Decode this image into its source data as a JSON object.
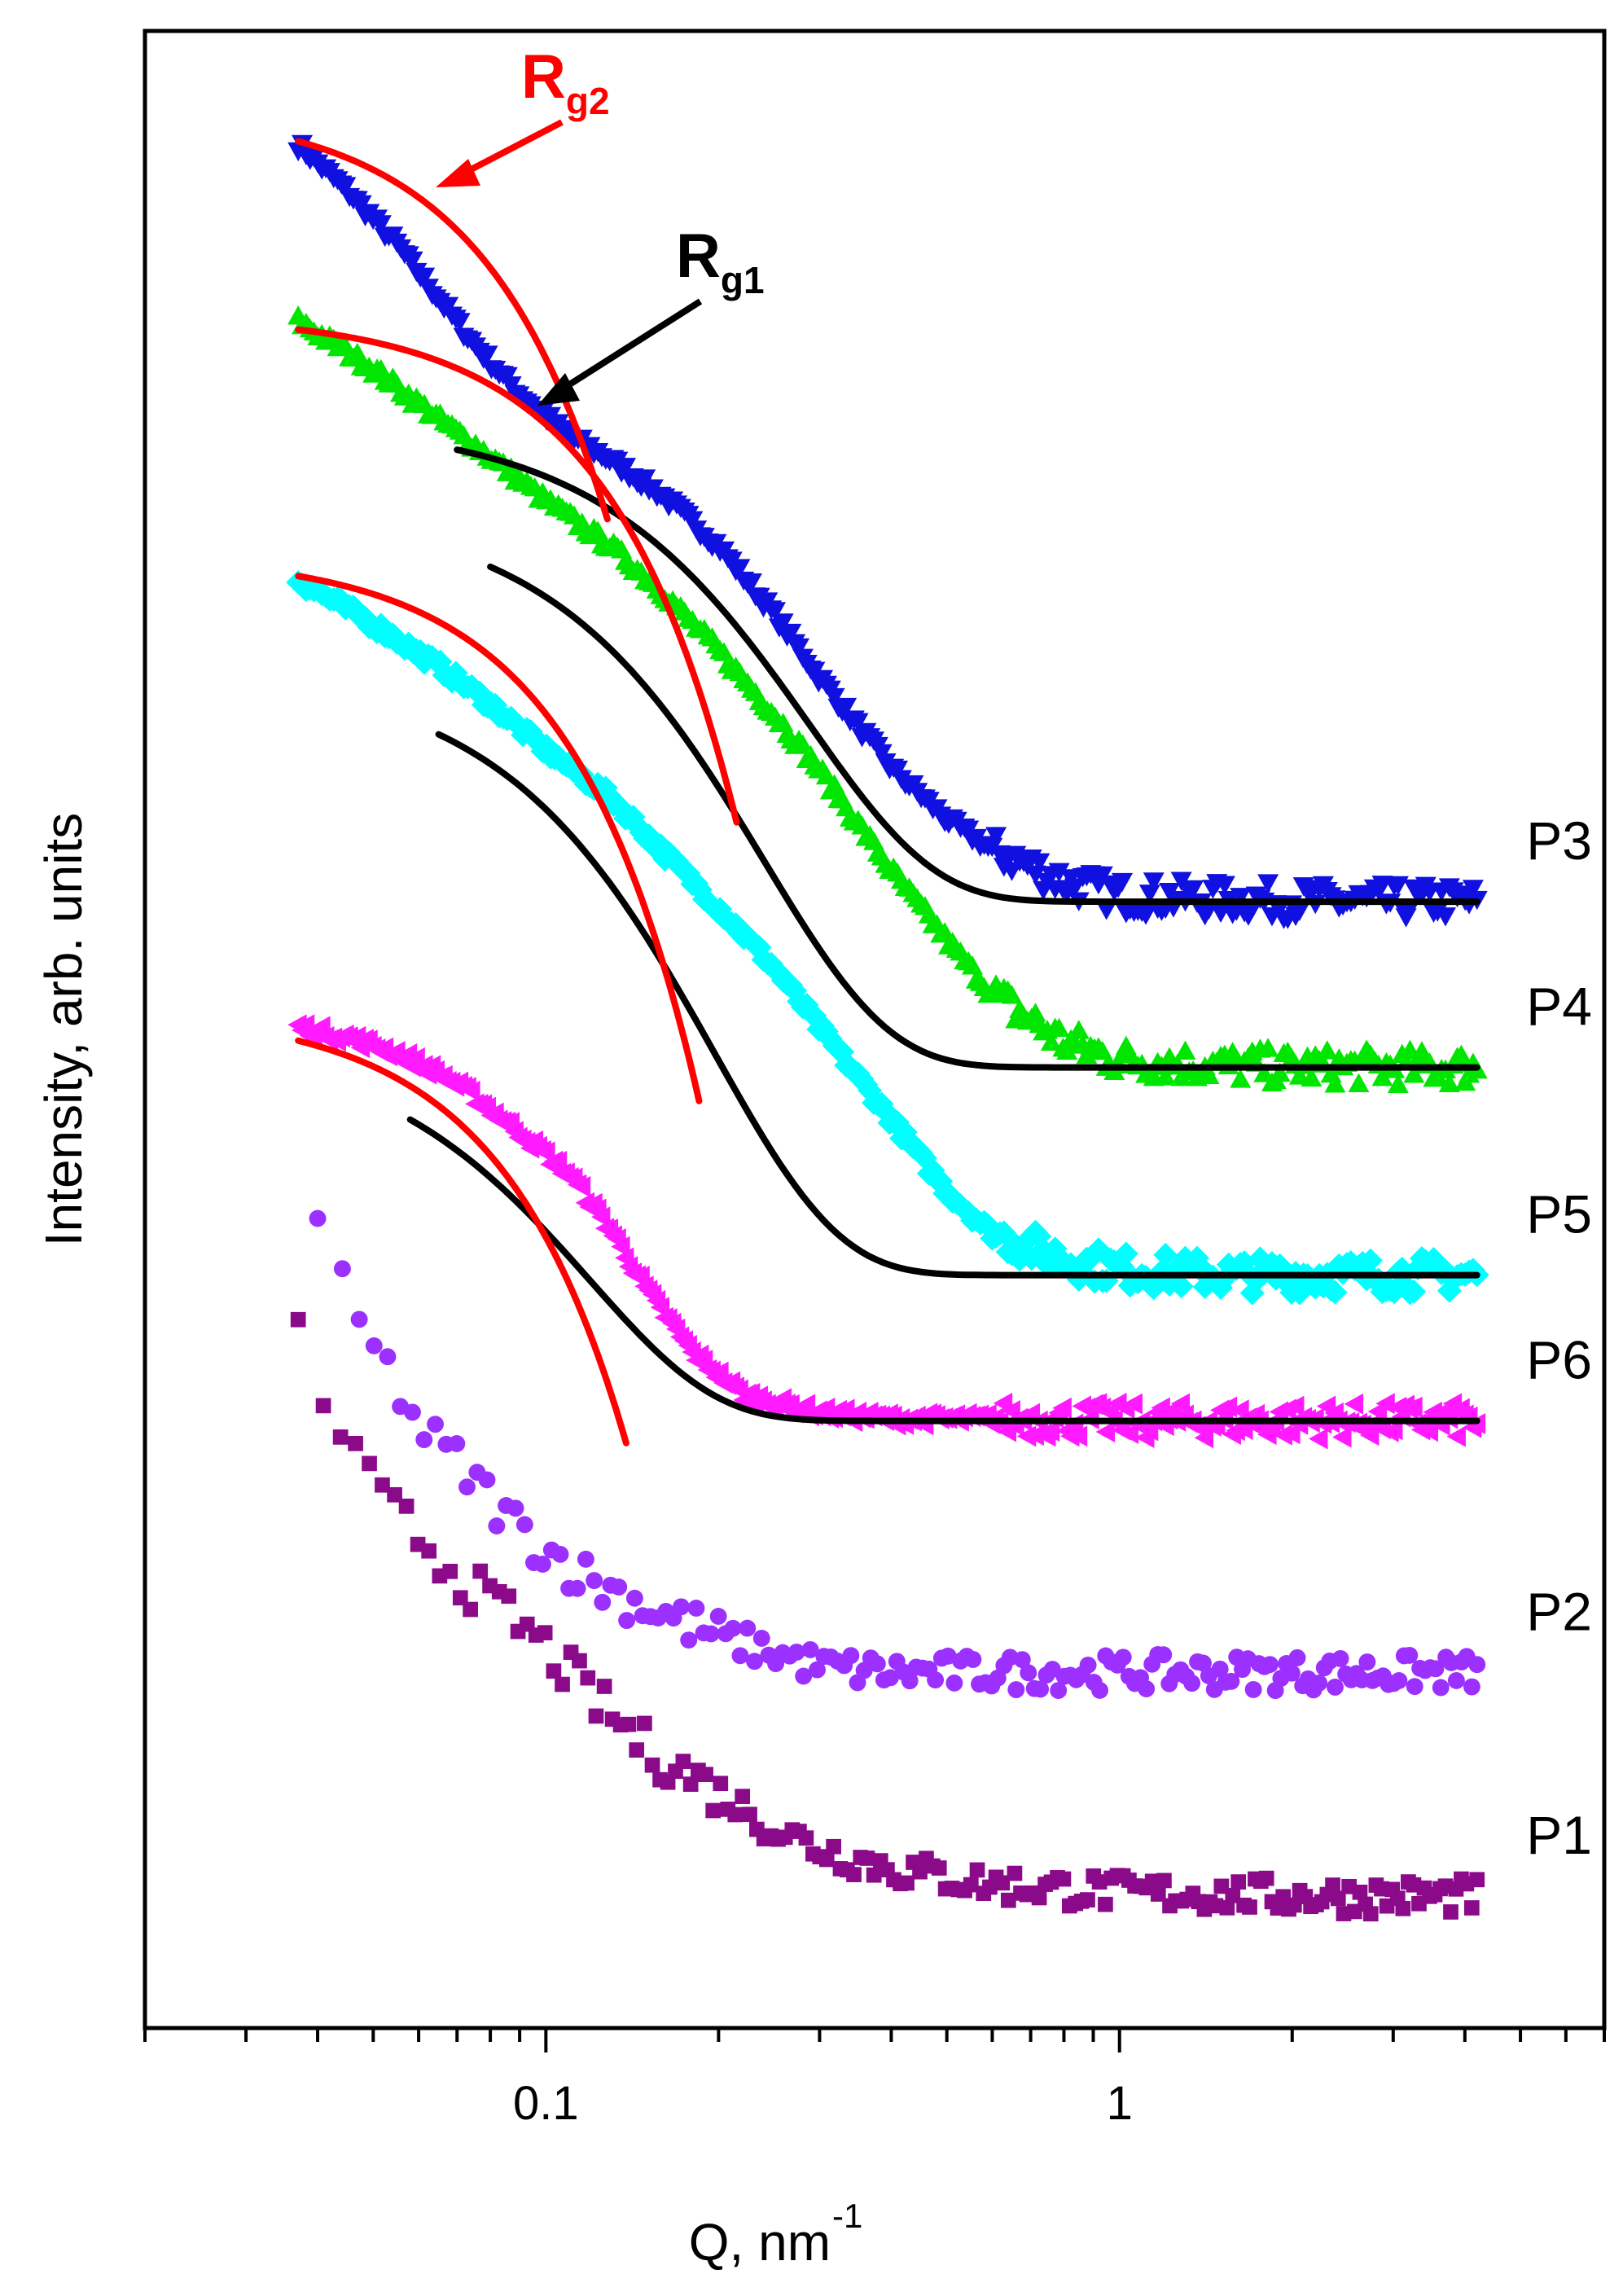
{
  "colors": {
    "P1": "#8a0a8a",
    "P2": "#9b30ff",
    "P3": "#1010e0",
    "P4": "#00e600",
    "P5": "#00ffff",
    "P6": "#ff1aff",
    "fit_rg1": "#000000",
    "fit_rg2": "#ff0000"
  },
  "chart_data": {
    "type": "scatter",
    "title": "",
    "xlabel": "Q, nm",
    "xlabel_sup": "-1",
    "ylabel": "Intensity, arb. units",
    "xscale": "log",
    "xlim": [
      0.02,
      7
    ],
    "ylim": [
      0,
      1000
    ],
    "x_ticks": [
      0.1,
      1
    ],
    "x_tick_labels": [
      "0.1",
      "1"
    ],
    "y_ticks": [],
    "series": [
      {
        "name": "P3",
        "marker": "triangle-down",
        "color_key": "P3",
        "q_range": [
          0.037,
          4.2
        ],
        "points": [
          [
            0.037,
            943
          ],
          [
            0.045,
            920
          ],
          [
            0.055,
            893
          ],
          [
            0.065,
            866
          ],
          [
            0.075,
            843
          ],
          [
            0.09,
            818
          ],
          [
            0.11,
            797
          ],
          [
            0.13,
            785
          ],
          [
            0.16,
            767
          ],
          [
            0.2,
            742
          ],
          [
            0.25,
            708
          ],
          [
            0.3,
            676
          ],
          [
            0.4,
            631
          ],
          [
            0.5,
            605
          ],
          [
            0.6,
            590
          ],
          [
            0.8,
            574
          ],
          [
            1.0,
            567
          ],
          [
            1.5,
            565
          ],
          [
            2.5,
            564
          ],
          [
            4.2,
            564
          ]
        ]
      },
      {
        "name": "P4",
        "marker": "triangle-up",
        "color_key": "P4",
        "q_range": [
          0.037,
          4.2
        ],
        "points": [
          [
            0.037,
            855
          ],
          [
            0.05,
            831
          ],
          [
            0.065,
            806
          ],
          [
            0.08,
            787
          ],
          [
            0.1,
            765
          ],
          [
            0.13,
            742
          ],
          [
            0.16,
            719
          ],
          [
            0.2,
            690
          ],
          [
            0.25,
            658
          ],
          [
            0.3,
            630
          ],
          [
            0.4,
            580
          ],
          [
            0.5,
            545
          ],
          [
            0.6,
            518
          ],
          [
            0.8,
            494
          ],
          [
            1.0,
            485
          ],
          [
            1.5,
            482
          ],
          [
            2.5,
            481
          ],
          [
            4.2,
            481
          ]
        ]
      },
      {
        "name": "P5",
        "marker": "diamond",
        "color_key": "P5",
        "q_range": [
          0.037,
          4.2
        ],
        "points": [
          [
            0.037,
            725
          ],
          [
            0.05,
            703
          ],
          [
            0.065,
            682
          ],
          [
            0.08,
            663
          ],
          [
            0.1,
            640
          ],
          [
            0.13,
            616
          ],
          [
            0.16,
            589
          ],
          [
            0.2,
            561
          ],
          [
            0.25,
            531
          ],
          [
            0.3,
            501
          ],
          [
            0.4,
            455
          ],
          [
            0.5,
            419
          ],
          [
            0.6,
            398
          ],
          [
            0.8,
            385
          ],
          [
            1.0,
            380
          ],
          [
            1.5,
            377
          ],
          [
            2.5,
            377
          ],
          [
            4.2,
            377
          ]
        ]
      },
      {
        "name": "P6",
        "marker": "triangle-left",
        "color_key": "P6",
        "q_range": [
          0.037,
          4.2
        ],
        "points": [
          [
            0.037,
            501
          ],
          [
            0.045,
            496
          ],
          [
            0.055,
            488
          ],
          [
            0.065,
            478
          ],
          [
            0.075,
            466
          ],
          [
            0.09,
            448
          ],
          [
            0.11,
            427
          ],
          [
            0.13,
            399
          ],
          [
            0.15,
            369
          ],
          [
            0.18,
            338
          ],
          [
            0.22,
            317
          ],
          [
            0.3,
            308
          ],
          [
            0.4,
            305
          ],
          [
            0.6,
            305
          ],
          [
            1.0,
            304
          ],
          [
            2.0,
            304
          ],
          [
            4.2,
            304
          ]
        ]
      },
      {
        "name": "P2",
        "marker": "circle",
        "color_key": "P2",
        "q_range": [
          0.04,
          4.2
        ],
        "points": [
          [
            0.04,
            398
          ],
          [
            0.045,
            363
          ],
          [
            0.05,
            340
          ],
          [
            0.055,
            322
          ],
          [
            0.06,
            300
          ],
          [
            0.07,
            283
          ],
          [
            0.08,
            265
          ],
          [
            0.09,
            250
          ],
          [
            0.1,
            240
          ],
          [
            0.12,
            224
          ],
          [
            0.14,
            215
          ],
          [
            0.17,
            204
          ],
          [
            0.2,
            196
          ],
          [
            0.25,
            188
          ],
          [
            0.3,
            181
          ],
          [
            0.4,
            178
          ],
          [
            0.6,
            178
          ],
          [
            1.0,
            178
          ],
          [
            2.0,
            178
          ],
          [
            4.2,
            178
          ]
        ]
      },
      {
        "name": "P1",
        "marker": "square",
        "color_key": "P1",
        "q_range": [
          0.037,
          4.2
        ],
        "points": [
          [
            0.037,
            347
          ],
          [
            0.04,
            318
          ],
          [
            0.045,
            295
          ],
          [
            0.05,
            268
          ],
          [
            0.06,
            246
          ],
          [
            0.07,
            227
          ],
          [
            0.08,
            213
          ],
          [
            0.09,
            202
          ],
          [
            0.1,
            190
          ],
          [
            0.12,
            166
          ],
          [
            0.15,
            140
          ],
          [
            0.2,
            118
          ],
          [
            0.25,
            100
          ],
          [
            0.3,
            90
          ],
          [
            0.4,
            80
          ],
          [
            0.6,
            72
          ],
          [
            1.0,
            68
          ],
          [
            2.0,
            66
          ],
          [
            4.2,
            66
          ]
        ]
      }
    ],
    "fits": [
      {
        "name": "Rg1 fit P3",
        "kind": "Rg1",
        "color_key": "fit_rg1",
        "range": [
          0.07,
          4.2
        ],
        "plateau": 564,
        "amp": 240,
        "rg": 6
      },
      {
        "name": "Rg1 fit P4",
        "kind": "Rg1",
        "color_key": "fit_rg1",
        "range": [
          0.08,
          4.2
        ],
        "plateau": 481,
        "amp": 280,
        "rg": 7.2
      },
      {
        "name": "Rg1 fit P5",
        "kind": "Rg1",
        "color_key": "fit_rg1",
        "range": [
          0.065,
          4.2
        ],
        "plateau": 377,
        "amp": 302,
        "rg": 8.8
      },
      {
        "name": "Rg1 fit P6",
        "kind": "Rg1",
        "color_key": "fit_rg1",
        "range": [
          0.058,
          4.2
        ],
        "plateau": 304,
        "amp": 191,
        "rg": 14.5
      },
      {
        "name": "Rg2 fit P3",
        "kind": "Rg2",
        "color_key": "fit_rg2",
        "range": [
          0.037,
          0.128
        ],
        "i0": 962,
        "k": 12600
      },
      {
        "name": "Rg2 fit P4",
        "kind": "Rg2",
        "color_key": "fit_rg2",
        "range": [
          0.037,
          0.215
        ],
        "i0": 858,
        "k": 5500
      },
      {
        "name": "Rg2 fit P5",
        "kind": "Rg2",
        "color_key": "fit_rg2",
        "range": [
          0.037,
          0.185
        ],
        "i0": 738,
        "k": 8000
      },
      {
        "name": "Rg2 fit P6",
        "kind": "Rg2",
        "color_key": "fit_rg2",
        "range": [
          0.037,
          0.138
        ],
        "i0": 510,
        "k": 11400
      }
    ],
    "curve_labels": [
      "P3",
      "P4",
      "P5",
      "P6",
      "P2",
      "P1"
    ],
    "annotations": [
      {
        "id": "rg2",
        "text": "R",
        "sub": "g2",
        "color_key": "fit_rg2",
        "points_to_q": 0.066,
        "points_to_series": "P3"
      },
      {
        "id": "rg1",
        "text": "R",
        "sub": "g1",
        "color_key": "fit_rg1",
        "points_to_q": 0.1,
        "points_to_series": "P3"
      }
    ]
  }
}
